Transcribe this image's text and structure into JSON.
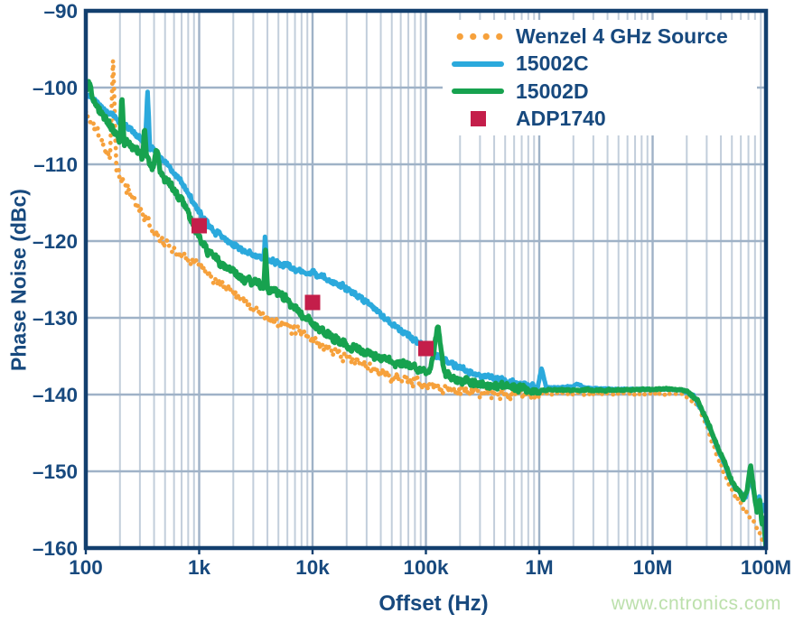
{
  "colors": {
    "text": "#17497E",
    "frame": "#123F6E",
    "grid_minor": "#C2CEDB",
    "grid_major": "#9FB2C7",
    "watermark": "#BCE0AC",
    "legend_bg": "#FFFFFF"
  },
  "watermark": {
    "text": "www.cntronics.com"
  },
  "chart_data": {
    "type": "line",
    "title": "",
    "xlabel": "Offset (Hz)",
    "ylabel": "Phase Noise (dBc)",
    "x_scale": "log",
    "xlim": [
      100,
      100000000
    ],
    "ylim": [
      -160,
      -90
    ],
    "grid": "on",
    "legend_position": "top-right",
    "x_ticks": [
      {
        "f": 100,
        "label": "100"
      },
      {
        "f": 1000,
        "label": "1k"
      },
      {
        "f": 10000,
        "label": "10k"
      },
      {
        "f": 100000,
        "label": "100k"
      },
      {
        "f": 1000000,
        "label": "1M"
      },
      {
        "f": 10000000,
        "label": "10M"
      },
      {
        "f": 100000000,
        "label": "100M"
      }
    ],
    "y_ticks": [
      {
        "v": -90,
        "label": "–90"
      },
      {
        "v": -100,
        "label": "–100"
      },
      {
        "v": -110,
        "label": "–110"
      },
      {
        "v": -120,
        "label": "–120"
      },
      {
        "v": -130,
        "label": "–130"
      },
      {
        "v": -140,
        "label": "–140"
      },
      {
        "v": -150,
        "label": "–150"
      },
      {
        "v": -160,
        "label": "–160"
      }
    ],
    "series": [
      {
        "name": "Wenzel 4 GHz Source",
        "color": "#F6A13C",
        "style": "dotted",
        "noise_db": 1.0,
        "points": [
          [
            100,
            -103.2
          ],
          [
            120,
            -105.2
          ],
          [
            145,
            -107.6
          ],
          [
            163,
            -109.3
          ],
          [
            174,
            -96.3
          ],
          [
            186,
            -110.8
          ],
          [
            215,
            -112.4
          ],
          [
            260,
            -114.2
          ],
          [
            310,
            -116.2
          ],
          [
            400,
            -118.6
          ],
          [
            500,
            -120.4
          ],
          [
            640,
            -121.4
          ],
          [
            800,
            -122.1
          ],
          [
            1000,
            -122.9
          ],
          [
            1250,
            -124.3
          ],
          [
            1600,
            -125.7
          ],
          [
            2000,
            -126.5
          ],
          [
            2600,
            -127.9
          ],
          [
            3500,
            -129.4
          ],
          [
            4500,
            -130.3
          ],
          [
            6000,
            -131.2
          ],
          [
            8000,
            -132.0
          ],
          [
            10000,
            -132.7
          ],
          [
            13000,
            -134.0
          ],
          [
            18000,
            -135.0
          ],
          [
            25000,
            -135.8
          ],
          [
            35000,
            -136.7
          ],
          [
            50000,
            -137.6
          ],
          [
            70000,
            -138.2
          ],
          [
            100000,
            -138.8
          ],
          [
            150000,
            -139.3
          ],
          [
            250000,
            -139.7
          ],
          [
            500000,
            -139.9
          ],
          [
            1000000,
            -139.9
          ],
          [
            3000000,
            -139.9
          ],
          [
            10000000,
            -139.9
          ],
          [
            18000000,
            -140.0
          ],
          [
            25000000,
            -141.2
          ],
          [
            30000000,
            -144.2
          ],
          [
            40000000,
            -149.2
          ],
          [
            50000000,
            -152.4
          ],
          [
            60000000,
            -154.3
          ],
          [
            70000000,
            -155.7
          ],
          [
            80000000,
            -157.1
          ],
          [
            90000000,
            -158.4
          ],
          [
            98000000,
            -159.4
          ]
        ]
      },
      {
        "name": "15002C",
        "color": "#2BA9DC",
        "style": "solid",
        "noise_db": 0.55,
        "points": [
          [
            100,
            -100.8
          ],
          [
            130,
            -102.3
          ],
          [
            160,
            -103.3
          ],
          [
            200,
            -104.3
          ],
          [
            250,
            -105.5
          ],
          [
            300,
            -106.6
          ],
          [
            335,
            -107.3
          ],
          [
            350,
            -100.5
          ],
          [
            368,
            -107.7
          ],
          [
            420,
            -108.6
          ],
          [
            500,
            -109.6
          ],
          [
            600,
            -111.0
          ],
          [
            700,
            -112.4
          ],
          [
            850,
            -114.4
          ],
          [
            1000,
            -116.4
          ],
          [
            1200,
            -117.9
          ],
          [
            1500,
            -119.2
          ],
          [
            2000,
            -120.4
          ],
          [
            2600,
            -121.4
          ],
          [
            3300,
            -122.0
          ],
          [
            3700,
            -122.2
          ],
          [
            3820,
            -119.2
          ],
          [
            3950,
            -122.4
          ],
          [
            5000,
            -122.9
          ],
          [
            6500,
            -123.5
          ],
          [
            8000,
            -123.9
          ],
          [
            10000,
            -124.3
          ],
          [
            13000,
            -124.9
          ],
          [
            17000,
            -125.6
          ],
          [
            22000,
            -126.5
          ],
          [
            28000,
            -127.7
          ],
          [
            36000,
            -129.0
          ],
          [
            47000,
            -130.4
          ],
          [
            60000,
            -131.6
          ],
          [
            75000,
            -132.7
          ],
          [
            100000,
            -133.9
          ],
          [
            130000,
            -135.0
          ],
          [
            170000,
            -136.0
          ],
          [
            220000,
            -136.8
          ],
          [
            300000,
            -137.4
          ],
          [
            400000,
            -137.9
          ],
          [
            550000,
            -138.4
          ],
          [
            750000,
            -138.8
          ],
          [
            950000,
            -139.0
          ],
          [
            1050000,
            -136.6
          ],
          [
            1150000,
            -139.0
          ],
          [
            1500000,
            -139.1
          ],
          [
            2000000,
            -138.9
          ],
          [
            2200000,
            -138.6
          ],
          [
            2500000,
            -139.1
          ],
          [
            3000000,
            -139.2
          ],
          [
            5000000,
            -139.3
          ],
          [
            8000000,
            -139.3
          ],
          [
            13000000,
            -139.3
          ],
          [
            18000000,
            -139.4
          ],
          [
            23000000,
            -140.1
          ],
          [
            28000000,
            -142.5
          ],
          [
            33000000,
            -145.0
          ],
          [
            40000000,
            -148.0
          ],
          [
            47000000,
            -150.5
          ],
          [
            53000000,
            -152.0
          ],
          [
            60000000,
            -152.8
          ],
          [
            66000000,
            -153.5
          ],
          [
            72000000,
            -150.8
          ],
          [
            77000000,
            -152.2
          ],
          [
            82000000,
            -154.6
          ],
          [
            87000000,
            -153.2
          ],
          [
            92000000,
            -155.2
          ],
          [
            96000000,
            -154.4
          ],
          [
            100000000,
            -154.8
          ]
        ]
      },
      {
        "name": "15002D",
        "color": "#17A24F",
        "style": "solid",
        "noise_db": 0.8,
        "points": [
          [
            100,
            -100.3
          ],
          [
            106,
            -99.3
          ],
          [
            118,
            -101.8
          ],
          [
            135,
            -103.2
          ],
          [
            160,
            -104.6
          ],
          [
            185,
            -105.9
          ],
          [
            200,
            -106.6
          ],
          [
            208,
            -100.4
          ],
          [
            218,
            -107.0
          ],
          [
            245,
            -107.5
          ],
          [
            280,
            -108.3
          ],
          [
            318,
            -108.9
          ],
          [
            330,
            -105.4
          ],
          [
            344,
            -109.4
          ],
          [
            390,
            -110.2
          ],
          [
            425,
            -107.9
          ],
          [
            455,
            -111.1
          ],
          [
            520,
            -112.0
          ],
          [
            600,
            -113.3
          ],
          [
            700,
            -114.9
          ],
          [
            800,
            -116.5
          ],
          [
            900,
            -118.1
          ],
          [
            1000,
            -119.7
          ],
          [
            1200,
            -121.3
          ],
          [
            1500,
            -122.8
          ],
          [
            1900,
            -123.9
          ],
          [
            2400,
            -124.8
          ],
          [
            3000,
            -125.4
          ],
          [
            3700,
            -125.8
          ],
          [
            3850,
            -121.3
          ],
          [
            4000,
            -126.0
          ],
          [
            5000,
            -126.8
          ],
          [
            6000,
            -127.7
          ],
          [
            7500,
            -129.0
          ],
          [
            9000,
            -130.2
          ],
          [
            11000,
            -131.3
          ],
          [
            14000,
            -132.3
          ],
          [
            18000,
            -133.2
          ],
          [
            23000,
            -133.9
          ],
          [
            30000,
            -134.6
          ],
          [
            40000,
            -135.3
          ],
          [
            55000,
            -135.9
          ],
          [
            70000,
            -136.3
          ],
          [
            90000,
            -136.7
          ],
          [
            110000,
            -136.9
          ],
          [
            128000,
            -130.9
          ],
          [
            145000,
            -137.3
          ],
          [
            180000,
            -137.9
          ],
          [
            250000,
            -138.4
          ],
          [
            350000,
            -138.8
          ],
          [
            500000,
            -139.0
          ],
          [
            700000,
            -139.2
          ],
          [
            1000000,
            -139.4
          ],
          [
            1500000,
            -139.4
          ],
          [
            3000000,
            -139.4
          ],
          [
            6000000,
            -139.4
          ],
          [
            10000000,
            -139.3
          ],
          [
            15000000,
            -139.3
          ],
          [
            20000000,
            -139.5
          ],
          [
            25000000,
            -140.8
          ],
          [
            30000000,
            -143.2
          ],
          [
            37000000,
            -146.5
          ],
          [
            45000000,
            -149.5
          ],
          [
            52000000,
            -151.8
          ],
          [
            58000000,
            -152.6
          ],
          [
            63000000,
            -153.8
          ],
          [
            68000000,
            -152.5
          ],
          [
            73000000,
            -149.2
          ],
          [
            78000000,
            -152.5
          ],
          [
            83000000,
            -155.3
          ],
          [
            88000000,
            -153.8
          ],
          [
            92000000,
            -157.0
          ],
          [
            95000000,
            -155.8
          ],
          [
            98000000,
            -158.5
          ],
          [
            100000000,
            -160.0
          ]
        ]
      },
      {
        "name": "ADP1740",
        "color": "#C41E4A",
        "style": "square-markers",
        "points": [
          [
            1000,
            -118
          ],
          [
            10000,
            -128
          ],
          [
            100000,
            -134
          ]
        ]
      }
    ]
  }
}
